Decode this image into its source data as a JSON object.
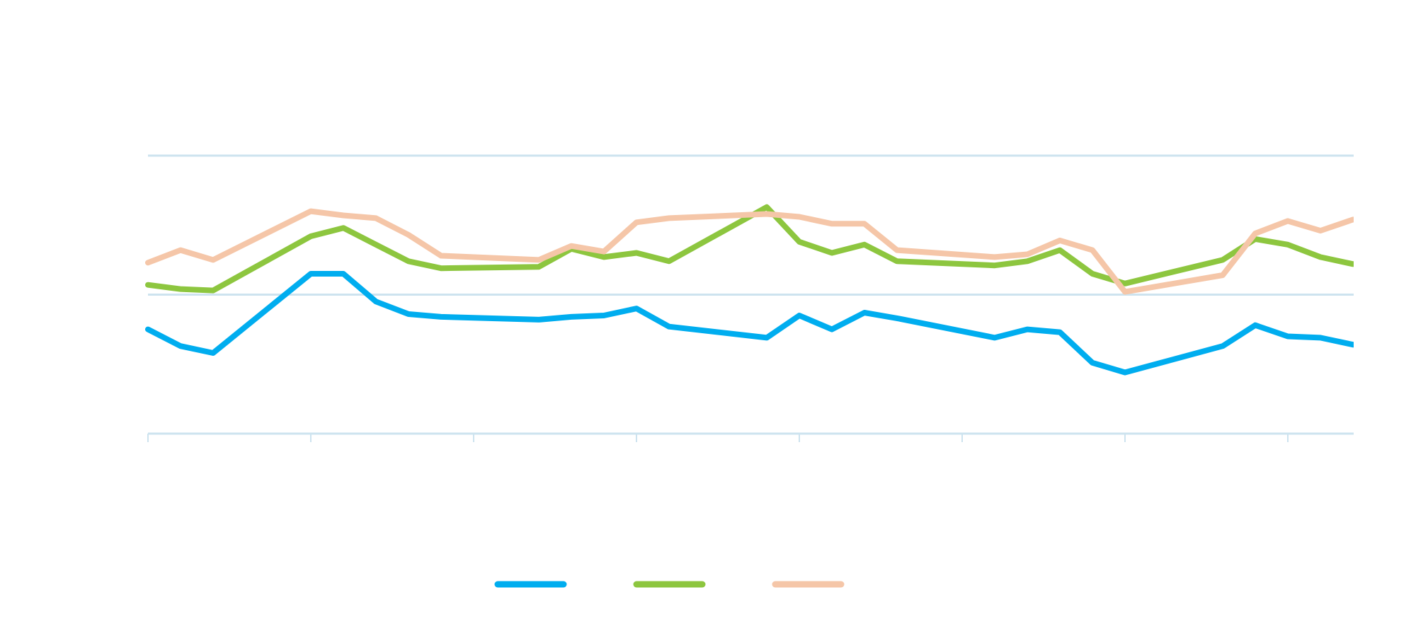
{
  "chart_data": {
    "type": "line",
    "title": "",
    "xlabel": "",
    "ylabel": "",
    "ylim": [
      0,
      2
    ],
    "grid": true,
    "legend_placement": "bottom-center",
    "x": [
      0,
      1,
      2,
      5,
      6,
      7,
      8,
      9,
      12,
      13,
      14,
      15,
      16,
      19,
      20,
      21,
      22,
      23,
      26,
      27,
      28,
      29,
      30,
      33,
      34,
      35,
      36,
      37,
      40,
      41,
      42,
      43,
      44
    ],
    "x_ticks": [
      0,
      5,
      10,
      15,
      20,
      25,
      30,
      35
    ],
    "series": [
      {
        "color": "#00adef",
        "values": [
          0.75,
          0.63,
          0.58,
          1.15,
          1.15,
          0.95,
          0.86,
          0.84,
          0.82,
          0.84,
          0.85,
          0.9,
          0.77,
          0.69,
          0.85,
          0.75,
          0.87,
          0.83,
          0.69,
          0.75,
          0.73,
          0.51,
          0.44,
          0.63,
          0.78,
          0.7,
          0.69,
          0.64,
          0.64,
          0.64,
          0.64,
          0.64,
          0.64
        ]
      },
      {
        "color": "#8dc63f",
        "values": [
          1.07,
          1.04,
          1.03,
          1.42,
          1.48,
          1.36,
          1.24,
          1.19,
          1.2,
          1.33,
          1.27,
          1.3,
          1.24,
          1.63,
          1.38,
          1.3,
          1.36,
          1.24,
          1.21,
          1.24,
          1.32,
          1.15,
          1.08,
          1.25,
          1.4,
          1.36,
          1.27,
          1.22,
          1.22,
          1.22,
          1.22,
          1.22,
          1.22
        ]
      },
      {
        "color": "#f5c6a8",
        "values": [
          1.23,
          1.32,
          1.25,
          1.6,
          1.57,
          1.55,
          1.43,
          1.28,
          1.25,
          1.35,
          1.31,
          1.52,
          1.55,
          1.58,
          1.56,
          1.51,
          1.51,
          1.32,
          1.27,
          1.29,
          1.39,
          1.32,
          1.02,
          1.14,
          1.44,
          1.53,
          1.46,
          1.54,
          1.54,
          1.54,
          1.54,
          1.54,
          1.54
        ]
      }
    ]
  },
  "legend": {
    "items": [
      {
        "color": "#00adef",
        "label": ""
      },
      {
        "color": "#8dc63f",
        "label": ""
      },
      {
        "color": "#f5c6a8",
        "label": ""
      }
    ]
  }
}
